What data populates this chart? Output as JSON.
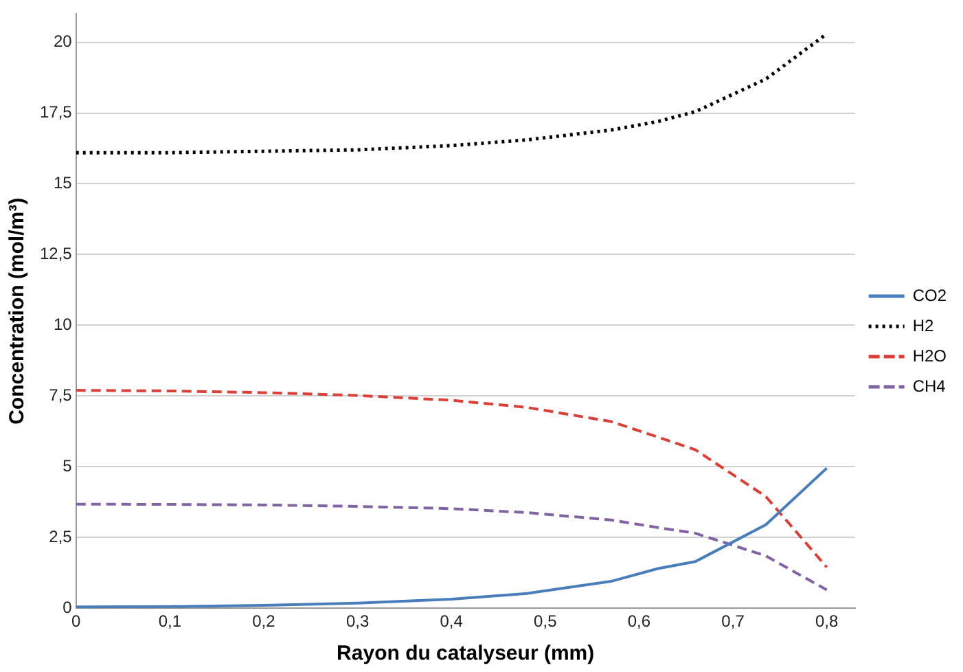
{
  "chart_data": {
    "type": "line",
    "xlabel": "Rayon du catalyseur (mm)",
    "ylabel": "Concentration (mol/m³)",
    "x": [
      0,
      0.1,
      0.2,
      0.3,
      0.4,
      0.48,
      0.57,
      0.62,
      0.66,
      0.735,
      0.8
    ],
    "xlim": [
      0,
      0.83
    ],
    "ylim": [
      0,
      21
    ],
    "xticks": [
      0,
      {
        "value": 0.1,
        "label": "0,1"
      },
      {
        "value": 0.2,
        "label": "0,2"
      },
      {
        "value": 0.3,
        "label": "0,3"
      },
      {
        "value": 0.4,
        "label": "0,4"
      },
      {
        "value": 0.5,
        "label": "0,5"
      },
      {
        "value": 0.6,
        "label": "0,6"
      },
      {
        "value": 0.7,
        "label": "0,7"
      },
      {
        "value": 0.8,
        "label": "0,8"
      }
    ],
    "yticks": [
      0,
      {
        "value": 2.5,
        "label": "2,5"
      },
      5,
      {
        "value": 7.5,
        "label": "7,5"
      },
      10,
      {
        "value": 12.5,
        "label": "12,5"
      },
      15,
      {
        "value": 17.5,
        "label": "17,5"
      },
      20
    ],
    "grid": "y",
    "legend": "right",
    "marker": "none",
    "series": [
      {
        "name": "CO2",
        "color": "#4a7ebb",
        "line_style": "solid",
        "values": [
          0.05,
          0.06,
          0.1,
          0.18,
          0.32,
          0.52,
          0.95,
          1.4,
          1.65,
          2.95,
          4.95
        ]
      },
      {
        "name": "H2",
        "color": "#000000",
        "line_style": "dotted",
        "values": [
          16.1,
          16.1,
          16.15,
          16.2,
          16.35,
          16.55,
          16.9,
          17.2,
          17.55,
          18.7,
          20.3
        ]
      },
      {
        "name": "H2O",
        "color": "#d9403a",
        "line_style": "dashed",
        "values": [
          7.7,
          7.68,
          7.62,
          7.52,
          7.35,
          7.1,
          6.6,
          6.05,
          5.6,
          3.95,
          1.45
        ]
      },
      {
        "name": "CH4",
        "color": "#8064a2",
        "line_style": "dashed",
        "values": [
          3.68,
          3.67,
          3.65,
          3.6,
          3.52,
          3.38,
          3.12,
          2.85,
          2.65,
          1.85,
          0.65
        ]
      }
    ]
  }
}
